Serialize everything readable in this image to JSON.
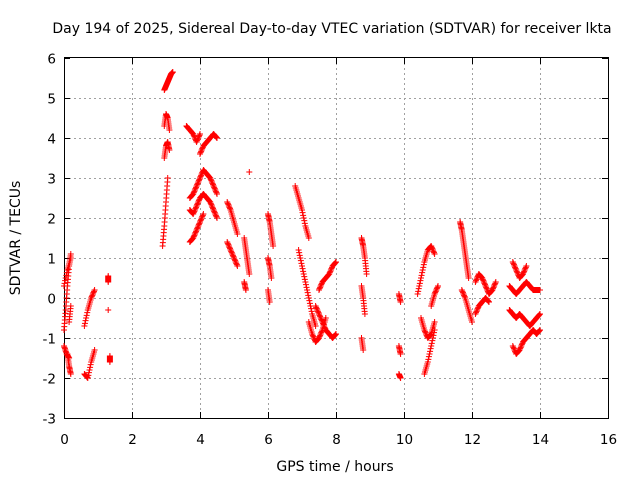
{
  "chart_data": {
    "type": "scatter",
    "title": "Day 194 of 2025, Sidereal Day-to-day VTEC variation (SDTVAR) for receiver lkta",
    "xlabel": "GPS time / hours",
    "ylabel": "SDTVAR / TECUs",
    "xlim": [
      0,
      16
    ],
    "ylim": [
      -3,
      6
    ],
    "xticks": [
      0,
      2,
      4,
      6,
      8,
      10,
      12,
      14,
      16
    ],
    "yticks": [
      -3,
      -2,
      -1,
      0,
      1,
      2,
      3,
      4,
      5,
      6
    ],
    "xtick_labels": [
      "0",
      "2",
      "4",
      "6",
      "8",
      "10",
      "12",
      "14",
      "16"
    ],
    "ytick_labels": [
      "-3",
      "-2",
      "-1",
      "0",
      "1",
      "2",
      "3",
      "4",
      "5",
      "6"
    ],
    "grid": true,
    "marker": "plus",
    "marker_color": "#ff0000",
    "segments": [
      {
        "x": [
          0.0,
          0.05,
          0.1,
          0.15,
          0.2
        ],
        "y": [
          -0.8,
          -0.3,
          0.3,
          0.8,
          1.1
        ]
      },
      {
        "x": [
          0.0,
          0.1,
          0.2
        ],
        "y": [
          0.3,
          0.7,
          1.0
        ]
      },
      {
        "x": [
          0.0,
          0.08,
          0.15
        ],
        "y": [
          -1.2,
          -1.4,
          -1.5
        ]
      },
      {
        "x": [
          0.1,
          0.15,
          0.2
        ],
        "y": [
          -1.4,
          -1.7,
          -1.9
        ]
      },
      {
        "x": [
          0.15,
          0.2
        ],
        "y": [
          -0.6,
          -0.2
        ]
      },
      {
        "x": [
          0.6,
          0.7,
          0.8,
          0.9
        ],
        "y": [
          -0.7,
          -0.3,
          0.0,
          0.2
        ]
      },
      {
        "x": [
          0.6,
          0.7,
          0.8,
          0.9
        ],
        "y": [
          -1.9,
          -2.0,
          -1.6,
          -1.3
        ]
      },
      {
        "x": [
          1.3,
          1.3
        ],
        "y": [
          0.4,
          0.55
        ]
      },
      {
        "x": [
          1.3
        ],
        "y": [
          -0.3
        ]
      },
      {
        "x": [
          1.35,
          1.35
        ],
        "y": [
          -1.45,
          -1.6
        ]
      },
      {
        "x": [
          2.95,
          3.0,
          3.05,
          3.1,
          3.15,
          3.2
        ],
        "y": [
          5.2,
          5.3,
          5.4,
          5.5,
          5.6,
          5.65
        ]
      },
      {
        "x": [
          2.95,
          3.0,
          3.05,
          3.1
        ],
        "y": [
          4.3,
          4.6,
          4.5,
          4.2
        ]
      },
      {
        "x": [
          2.95,
          3.0,
          3.05,
          3.1
        ],
        "y": [
          3.5,
          3.8,
          3.9,
          3.7
        ]
      },
      {
        "x": [
          2.9,
          2.95,
          3.0,
          3.05
        ],
        "y": [
          1.3,
          1.8,
          2.4,
          3.0
        ]
      },
      {
        "x": [
          3.6,
          3.7,
          3.8,
          3.9,
          4.0
        ],
        "y": [
          4.3,
          4.2,
          4.1,
          3.9,
          4.1
        ]
      },
      {
        "x": [
          3.7,
          3.8,
          3.9,
          4.0,
          4.1,
          4.2,
          4.3,
          4.4,
          4.5
        ],
        "y": [
          2.5,
          2.6,
          2.8,
          3.0,
          3.2,
          3.1,
          3.0,
          2.8,
          2.6
        ]
      },
      {
        "x": [
          3.7,
          3.8,
          3.9,
          4.0,
          4.1,
          4.2,
          4.3,
          4.4,
          4.5
        ],
        "y": [
          2.2,
          2.1,
          2.3,
          2.5,
          2.6,
          2.5,
          2.4,
          2.2,
          2.0
        ]
      },
      {
        "x": [
          3.7,
          3.8,
          3.9,
          4.0,
          4.1
        ],
        "y": [
          1.4,
          1.5,
          1.7,
          1.9,
          2.1
        ]
      },
      {
        "x": [
          4.0,
          4.1,
          4.2,
          4.3,
          4.4,
          4.5
        ],
        "y": [
          3.6,
          3.8,
          3.9,
          4.0,
          4.1,
          4.0
        ]
      },
      {
        "x": [
          4.8,
          4.9,
          5.0,
          5.1
        ],
        "y": [
          2.4,
          2.2,
          1.9,
          1.6
        ]
      },
      {
        "x": [
          4.8,
          4.9,
          5.0,
          5.1
        ],
        "y": [
          1.4,
          1.2,
          1.0,
          0.8
        ]
      },
      {
        "x": [
          5.3,
          5.35,
          5.4,
          5.45
        ],
        "y": [
          1.5,
          1.2,
          0.9,
          0.6
        ]
      },
      {
        "x": [
          5.3,
          5.35
        ],
        "y": [
          0.4,
          0.2
        ]
      },
      {
        "x": [
          5.45
        ],
        "y": [
          3.15
        ]
      },
      {
        "x": [
          6.0,
          6.05,
          6.1,
          6.15
        ],
        "y": [
          2.1,
          1.9,
          1.6,
          1.3
        ]
      },
      {
        "x": [
          6.0,
          6.05,
          6.1
        ],
        "y": [
          1.0,
          0.8,
          0.5
        ]
      },
      {
        "x": [
          6.0,
          6.05
        ],
        "y": [
          0.2,
          -0.1
        ]
      },
      {
        "x": [
          6.8,
          6.9,
          7.0,
          7.1,
          7.2
        ],
        "y": [
          2.8,
          2.5,
          2.2,
          1.8,
          1.5
        ]
      },
      {
        "x": [
          6.9,
          7.0,
          7.1,
          7.2,
          7.3,
          7.4
        ],
        "y": [
          1.2,
          0.8,
          0.4,
          0.0,
          -0.4,
          -0.7
        ]
      },
      {
        "x": [
          7.2,
          7.3,
          7.4,
          7.5,
          7.6,
          7.7
        ],
        "y": [
          -0.6,
          -0.9,
          -1.1,
          -1.0,
          -0.8,
          -0.5
        ]
      },
      {
        "x": [
          7.5,
          7.6,
          7.7,
          7.8,
          7.9,
          8.0
        ],
        "y": [
          0.2,
          0.4,
          0.5,
          0.6,
          0.8,
          0.9
        ]
      },
      {
        "x": [
          7.4,
          7.5,
          7.6,
          7.7,
          7.8,
          7.9,
          8.0
        ],
        "y": [
          -0.2,
          -0.4,
          -0.6,
          -0.8,
          -0.9,
          -1.0,
          -0.9
        ]
      },
      {
        "x": [
          8.75,
          8.8,
          8.85,
          8.9
        ],
        "y": [
          1.5,
          1.3,
          1.0,
          0.6
        ]
      },
      {
        "x": [
          8.75,
          8.8,
          8.85
        ],
        "y": [
          0.3,
          0.0,
          -0.4
        ]
      },
      {
        "x": [
          8.75,
          8.8
        ],
        "y": [
          -1.0,
          -1.3
        ]
      },
      {
        "x": [
          9.85,
          9.9
        ],
        "y": [
          0.1,
          -0.1
        ]
      },
      {
        "x": [
          9.85,
          9.9
        ],
        "y": [
          -1.2,
          -1.4
        ]
      },
      {
        "x": [
          9.85,
          9.9
        ],
        "y": [
          -1.9,
          -2.0
        ]
      },
      {
        "x": [
          10.4,
          10.5,
          10.6,
          10.7,
          10.8,
          10.9
        ],
        "y": [
          0.1,
          0.5,
          0.9,
          1.2,
          1.3,
          1.1
        ]
      },
      {
        "x": [
          10.5,
          10.6,
          10.7,
          10.8,
          10.9
        ],
        "y": [
          -0.5,
          -0.8,
          -1.0,
          -0.9,
          -0.6
        ]
      },
      {
        "x": [
          10.6,
          10.7,
          10.8,
          10.9
        ],
        "y": [
          -1.9,
          -1.6,
          -1.2,
          -0.8
        ]
      },
      {
        "x": [
          10.8,
          10.9,
          11.0
        ],
        "y": [
          -0.2,
          0.1,
          0.3
        ]
      },
      {
        "x": [
          11.65,
          11.7,
          11.75,
          11.8,
          11.85,
          11.9
        ],
        "y": [
          1.9,
          1.7,
          1.4,
          1.1,
          0.8,
          0.5
        ]
      },
      {
        "x": [
          11.7,
          11.8,
          11.9,
          12.0
        ],
        "y": [
          0.2,
          0.0,
          -0.3,
          -0.6
        ]
      },
      {
        "x": [
          12.1,
          12.2,
          12.3,
          12.4,
          12.5,
          12.6,
          12.7
        ],
        "y": [
          0.4,
          0.6,
          0.5,
          0.3,
          0.1,
          0.2,
          0.4
        ]
      },
      {
        "x": [
          12.1,
          12.2,
          12.3,
          12.4,
          12.5
        ],
        "y": [
          -0.4,
          -0.2,
          -0.1,
          0.0,
          -0.1
        ]
      },
      {
        "x": [
          13.2,
          13.3,
          13.4,
          13.5,
          13.6
        ],
        "y": [
          0.9,
          0.7,
          0.5,
          0.6,
          0.8
        ]
      },
      {
        "x": [
          13.1,
          13.2,
          13.3,
          13.4,
          13.5,
          13.6,
          13.7,
          13.8,
          13.9,
          14.0
        ],
        "y": [
          0.3,
          0.2,
          0.1,
          0.2,
          0.3,
          0.4,
          0.3,
          0.2,
          0.2,
          0.2
        ]
      },
      {
        "x": [
          13.1,
          13.2,
          13.3,
          13.4,
          13.5,
          13.6,
          13.7,
          13.8,
          13.9,
          14.0
        ],
        "y": [
          -0.3,
          -0.4,
          -0.5,
          -0.4,
          -0.5,
          -0.6,
          -0.7,
          -0.6,
          -0.5,
          -0.4
        ]
      },
      {
        "x": [
          13.2,
          13.3,
          13.4,
          13.5,
          13.6,
          13.7,
          13.8,
          13.9,
          14.0
        ],
        "y": [
          -1.2,
          -1.4,
          -1.3,
          -1.1,
          -1.0,
          -0.9,
          -0.8,
          -0.9,
          -0.8
        ]
      }
    ]
  }
}
